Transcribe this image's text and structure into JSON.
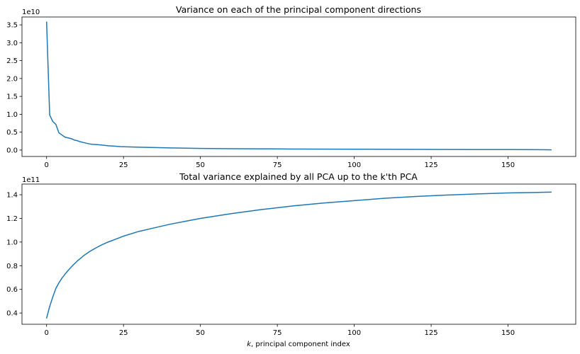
{
  "chart_data": [
    {
      "type": "line",
      "title": "Variance on each of the principal component directions",
      "xlabel": "",
      "ylabel": "",
      "y_offset_label": "1e10",
      "xlim": [
        -8,
        172
      ],
      "ylim": [
        -0.18,
        3.72
      ],
      "x_ticks": [
        0,
        25,
        50,
        75,
        100,
        125,
        150
      ],
      "x_tick_labels": [
        "0",
        "25",
        "50",
        "75",
        "100",
        "125",
        "150"
      ],
      "y_ticks": [
        0,
        0.5,
        1.0,
        1.5,
        2.0,
        2.5,
        3.0,
        3.5
      ],
      "y_tick_labels": [
        "0.0",
        "0.5",
        "1.0",
        "1.5",
        "2.0",
        "2.5",
        "3.0",
        "3.5"
      ],
      "grid": false,
      "color": "#1f77b4",
      "series": [
        {
          "x": [
            0,
            1,
            2,
            3,
            4,
            5,
            6,
            7,
            8,
            9,
            10,
            11,
            12,
            13,
            14,
            15,
            16,
            18,
            20,
            22,
            24,
            26,
            28,
            30,
            35,
            40,
            45,
            50,
            60,
            70,
            80,
            90,
            100,
            110,
            120,
            130,
            140,
            150,
            160,
            164
          ],
          "values": [
            3.58,
            0.98,
            0.8,
            0.72,
            0.48,
            0.42,
            0.36,
            0.34,
            0.32,
            0.28,
            0.26,
            0.23,
            0.21,
            0.19,
            0.17,
            0.16,
            0.155,
            0.14,
            0.12,
            0.11,
            0.095,
            0.09,
            0.085,
            0.08,
            0.07,
            0.06,
            0.052,
            0.046,
            0.038,
            0.033,
            0.029,
            0.026,
            0.023,
            0.02,
            0.018,
            0.016,
            0.014,
            0.012,
            0.01,
            0.005
          ]
        }
      ]
    },
    {
      "type": "line",
      "title": "Total variance explained by all PCA up to the k'th PCA",
      "xlabel": "k, principal component index",
      "xlabel_italic_part": "k",
      "ylabel": "",
      "y_offset_label": "1e11",
      "xlim": [
        -8,
        172
      ],
      "ylim": [
        0.305,
        1.49
      ],
      "x_ticks": [
        0,
        25,
        50,
        75,
        100,
        125,
        150
      ],
      "x_tick_labels": [
        "0",
        "25",
        "50",
        "75",
        "100",
        "125",
        "150"
      ],
      "y_ticks": [
        0.4,
        0.6,
        0.8,
        1.0,
        1.2,
        1.4
      ],
      "y_tick_labels": [
        "0.4",
        "0.6",
        "0.8",
        "1.0",
        "1.2",
        "1.4"
      ],
      "grid": false,
      "color": "#1f77b4",
      "series": [
        {
          "x": [
            0,
            1,
            2,
            3,
            4,
            5,
            6,
            7,
            8,
            9,
            10,
            12,
            14,
            16,
            18,
            20,
            22,
            25,
            30,
            35,
            40,
            45,
            50,
            60,
            70,
            80,
            90,
            100,
            110,
            120,
            130,
            140,
            150,
            160,
            164
          ],
          "values": [
            0.358,
            0.455,
            0.535,
            0.607,
            0.655,
            0.695,
            0.729,
            0.76,
            0.788,
            0.815,
            0.84,
            0.884,
            0.92,
            0.95,
            0.977,
            1.0,
            1.02,
            1.05,
            1.09,
            1.12,
            1.15,
            1.175,
            1.2,
            1.24,
            1.275,
            1.305,
            1.33,
            1.35,
            1.37,
            1.385,
            1.397,
            1.407,
            1.415,
            1.42,
            1.422
          ]
        }
      ]
    }
  ]
}
